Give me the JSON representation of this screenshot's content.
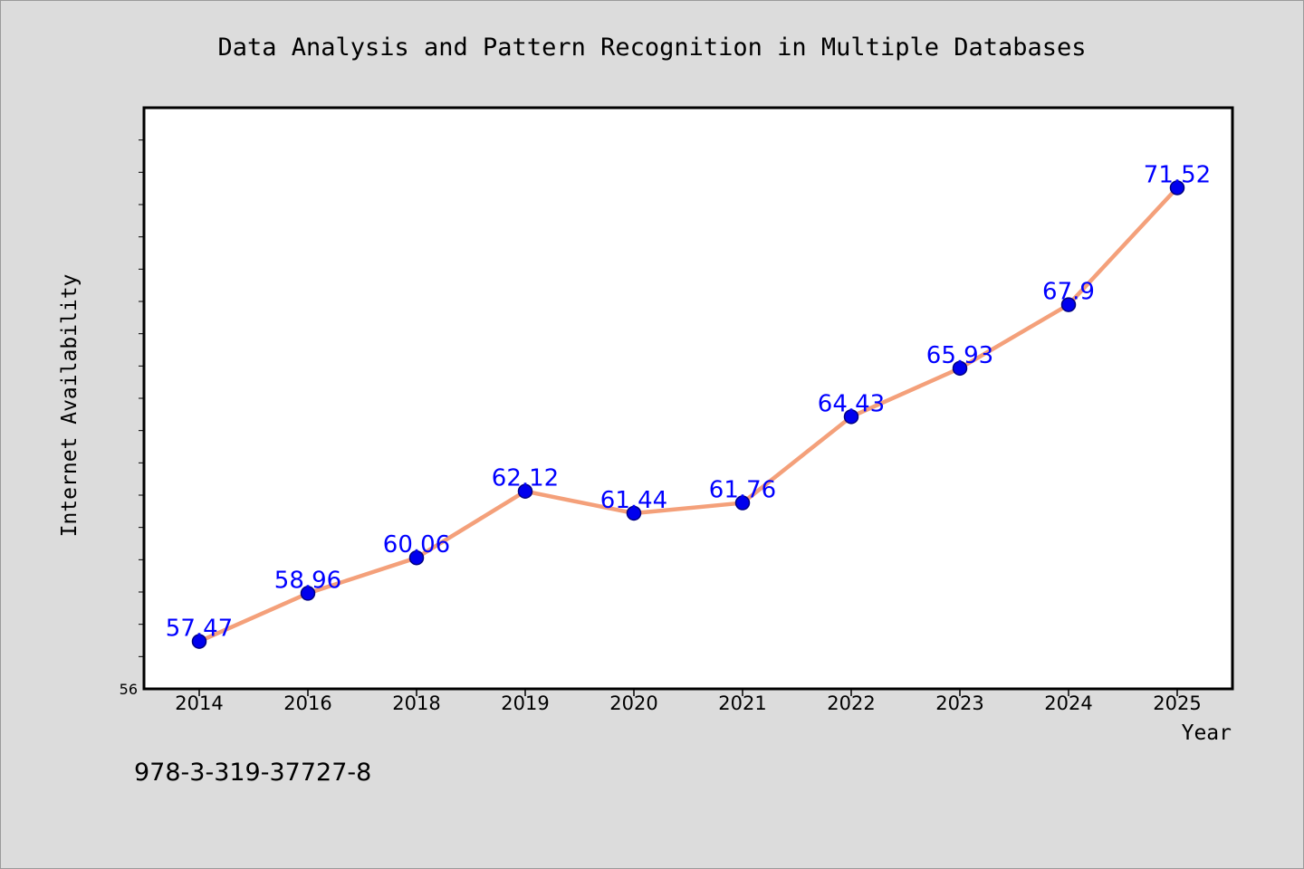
{
  "chart_data": {
    "type": "line",
    "title": "Data Analysis and Pattern Recognition in Multiple Databases",
    "xlabel": "Year",
    "ylabel": "Internet Availability",
    "categories": [
      "2014",
      "2016",
      "2018",
      "2019",
      "2020",
      "2021",
      "2022",
      "2023",
      "2024",
      "2025"
    ],
    "series": [
      {
        "values": [
          57.47,
          58.96,
          60.06,
          62.12,
          61.44,
          61.76,
          64.43,
          65.93,
          67.9,
          71.52
        ],
        "data_labels": [
          "57.47",
          "58.96",
          "60.06",
          "62.12",
          "61.44",
          "61.76",
          "64.43",
          "65.93",
          "67.9",
          "71.52"
        ]
      }
    ],
    "ylim": [
      56,
      74
    ],
    "y_tick_labels": [
      "56"
    ],
    "y_minor_ticks": [
      57,
      58,
      59,
      60,
      61,
      62,
      63,
      64,
      65,
      66,
      67,
      68,
      69,
      70,
      71,
      72,
      73
    ],
    "grid": false,
    "legend": "none",
    "colors": {
      "line": "#f4a07a",
      "marker": "#0000ee",
      "marker_edge": "#000080",
      "data_label": "#0000ff",
      "background": "#dcdcdc",
      "plot_area": "#ffffff"
    }
  },
  "footer": {
    "isbn": "978-3-319-37727-8"
  }
}
